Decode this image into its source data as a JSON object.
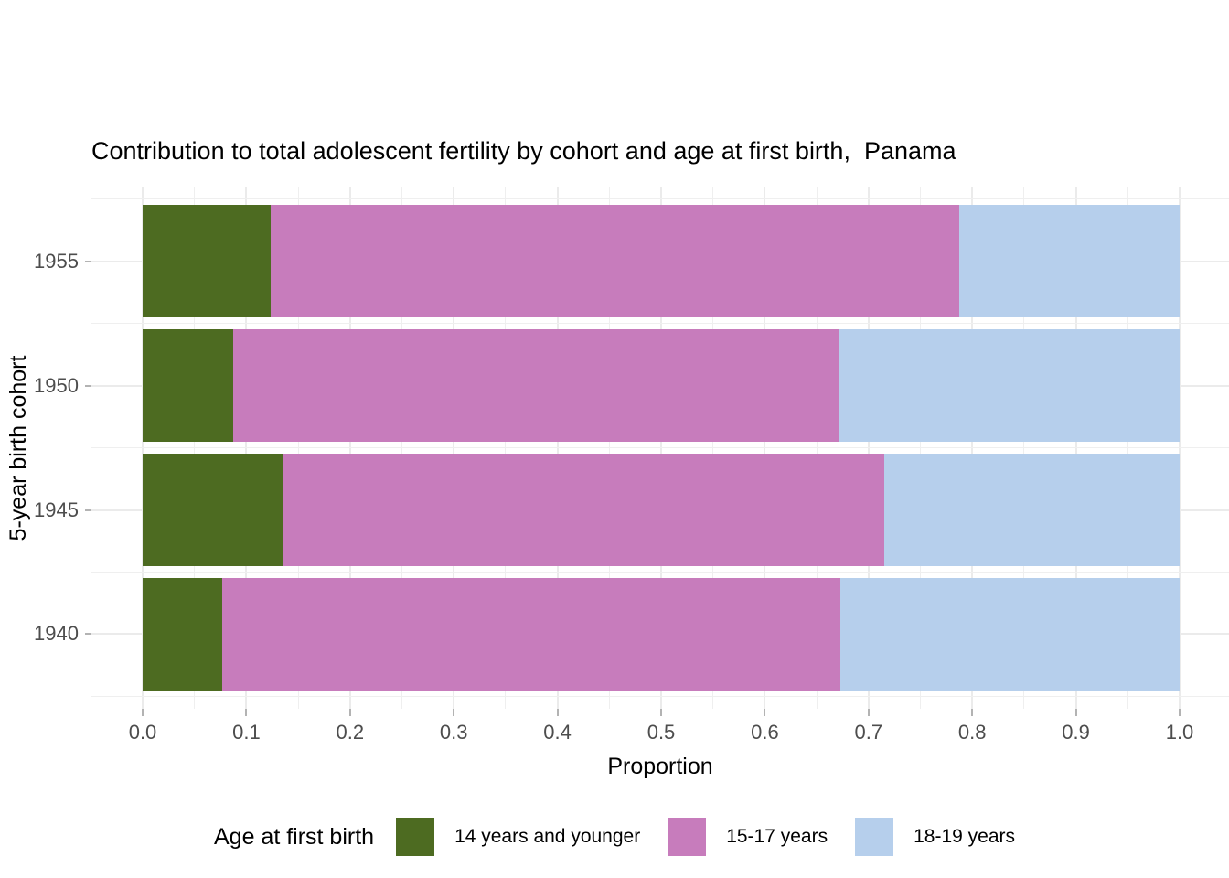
{
  "chart_data": {
    "type": "bar",
    "orientation": "horizontal",
    "stacked": true,
    "title": "Contribution to total adolescent fertility by cohort and age at first birth,  Panama",
    "xlabel": "Proportion",
    "ylabel": "5-year birth cohort",
    "categories": [
      "1955",
      "1950",
      "1945",
      "1940"
    ],
    "series": [
      {
        "name": "14 years and younger",
        "color": "#4d6b21",
        "values": [
          0.123,
          0.087,
          0.135,
          0.077
        ]
      },
      {
        "name": "15-17 years",
        "color": "#c77cbc",
        "values": [
          0.664,
          0.584,
          0.58,
          0.596
        ]
      },
      {
        "name": "18-19 years",
        "color": "#b6cfec",
        "values": [
          0.213,
          0.329,
          0.285,
          0.327
        ]
      }
    ],
    "xlim": [
      0,
      1
    ],
    "x_ticks": [
      "0.0",
      "0.1",
      "0.2",
      "0.3",
      "0.4",
      "0.5",
      "0.6",
      "0.7",
      "0.8",
      "0.9",
      "1.0"
    ],
    "grid": true,
    "legend": {
      "title": "Age at first birth",
      "position": "bottom"
    },
    "style": {
      "panel_background": "#ffffff",
      "gridline_color": "#ebebeb",
      "tick_color": "#b3b3b3",
      "tick_label_color": "#4d4d4d",
      "text_color": "#000000"
    }
  }
}
